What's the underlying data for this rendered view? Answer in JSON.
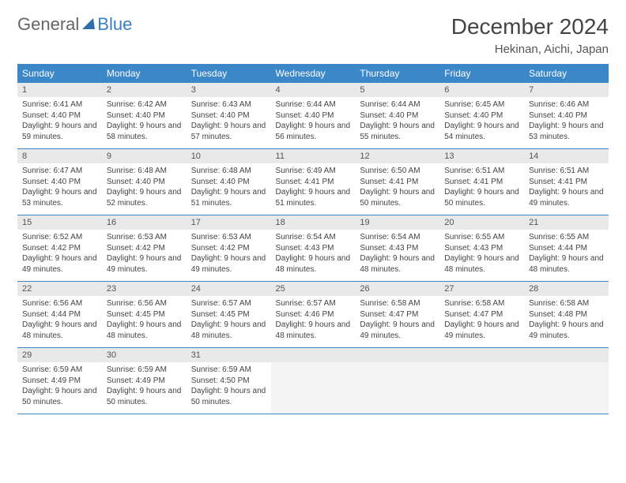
{
  "brand": {
    "part1": "General",
    "part2": "Blue"
  },
  "title": "December 2024",
  "location": "Hekinan, Aichi, Japan",
  "colors": {
    "header_bg": "#3b87c8",
    "header_text": "#ffffff",
    "daynum_bg": "#e9e9e9",
    "border": "#3b87c8",
    "brand_blue": "#3b7ec2"
  },
  "typography": {
    "title_fontsize": 28,
    "location_fontsize": 15,
    "header_fontsize": 12,
    "cell_fontsize": 10
  },
  "day_headers": [
    "Sunday",
    "Monday",
    "Tuesday",
    "Wednesday",
    "Thursday",
    "Friday",
    "Saturday"
  ],
  "weeks": [
    [
      {
        "n": "1",
        "sr": "Sunrise: 6:41 AM",
        "ss": "Sunset: 4:40 PM",
        "dl": "Daylight: 9 hours and 59 minutes."
      },
      {
        "n": "2",
        "sr": "Sunrise: 6:42 AM",
        "ss": "Sunset: 4:40 PM",
        "dl": "Daylight: 9 hours and 58 minutes."
      },
      {
        "n": "3",
        "sr": "Sunrise: 6:43 AM",
        "ss": "Sunset: 4:40 PM",
        "dl": "Daylight: 9 hours and 57 minutes."
      },
      {
        "n": "4",
        "sr": "Sunrise: 6:44 AM",
        "ss": "Sunset: 4:40 PM",
        "dl": "Daylight: 9 hours and 56 minutes."
      },
      {
        "n": "5",
        "sr": "Sunrise: 6:44 AM",
        "ss": "Sunset: 4:40 PM",
        "dl": "Daylight: 9 hours and 55 minutes."
      },
      {
        "n": "6",
        "sr": "Sunrise: 6:45 AM",
        "ss": "Sunset: 4:40 PM",
        "dl": "Daylight: 9 hours and 54 minutes."
      },
      {
        "n": "7",
        "sr": "Sunrise: 6:46 AM",
        "ss": "Sunset: 4:40 PM",
        "dl": "Daylight: 9 hours and 53 minutes."
      }
    ],
    [
      {
        "n": "8",
        "sr": "Sunrise: 6:47 AM",
        "ss": "Sunset: 4:40 PM",
        "dl": "Daylight: 9 hours and 53 minutes."
      },
      {
        "n": "9",
        "sr": "Sunrise: 6:48 AM",
        "ss": "Sunset: 4:40 PM",
        "dl": "Daylight: 9 hours and 52 minutes."
      },
      {
        "n": "10",
        "sr": "Sunrise: 6:48 AM",
        "ss": "Sunset: 4:40 PM",
        "dl": "Daylight: 9 hours and 51 minutes."
      },
      {
        "n": "11",
        "sr": "Sunrise: 6:49 AM",
        "ss": "Sunset: 4:41 PM",
        "dl": "Daylight: 9 hours and 51 minutes."
      },
      {
        "n": "12",
        "sr": "Sunrise: 6:50 AM",
        "ss": "Sunset: 4:41 PM",
        "dl": "Daylight: 9 hours and 50 minutes."
      },
      {
        "n": "13",
        "sr": "Sunrise: 6:51 AM",
        "ss": "Sunset: 4:41 PM",
        "dl": "Daylight: 9 hours and 50 minutes."
      },
      {
        "n": "14",
        "sr": "Sunrise: 6:51 AM",
        "ss": "Sunset: 4:41 PM",
        "dl": "Daylight: 9 hours and 49 minutes."
      }
    ],
    [
      {
        "n": "15",
        "sr": "Sunrise: 6:52 AM",
        "ss": "Sunset: 4:42 PM",
        "dl": "Daylight: 9 hours and 49 minutes."
      },
      {
        "n": "16",
        "sr": "Sunrise: 6:53 AM",
        "ss": "Sunset: 4:42 PM",
        "dl": "Daylight: 9 hours and 49 minutes."
      },
      {
        "n": "17",
        "sr": "Sunrise: 6:53 AM",
        "ss": "Sunset: 4:42 PM",
        "dl": "Daylight: 9 hours and 49 minutes."
      },
      {
        "n": "18",
        "sr": "Sunrise: 6:54 AM",
        "ss": "Sunset: 4:43 PM",
        "dl": "Daylight: 9 hours and 48 minutes."
      },
      {
        "n": "19",
        "sr": "Sunrise: 6:54 AM",
        "ss": "Sunset: 4:43 PM",
        "dl": "Daylight: 9 hours and 48 minutes."
      },
      {
        "n": "20",
        "sr": "Sunrise: 6:55 AM",
        "ss": "Sunset: 4:43 PM",
        "dl": "Daylight: 9 hours and 48 minutes."
      },
      {
        "n": "21",
        "sr": "Sunrise: 6:55 AM",
        "ss": "Sunset: 4:44 PM",
        "dl": "Daylight: 9 hours and 48 minutes."
      }
    ],
    [
      {
        "n": "22",
        "sr": "Sunrise: 6:56 AM",
        "ss": "Sunset: 4:44 PM",
        "dl": "Daylight: 9 hours and 48 minutes."
      },
      {
        "n": "23",
        "sr": "Sunrise: 6:56 AM",
        "ss": "Sunset: 4:45 PM",
        "dl": "Daylight: 9 hours and 48 minutes."
      },
      {
        "n": "24",
        "sr": "Sunrise: 6:57 AM",
        "ss": "Sunset: 4:45 PM",
        "dl": "Daylight: 9 hours and 48 minutes."
      },
      {
        "n": "25",
        "sr": "Sunrise: 6:57 AM",
        "ss": "Sunset: 4:46 PM",
        "dl": "Daylight: 9 hours and 48 minutes."
      },
      {
        "n": "26",
        "sr": "Sunrise: 6:58 AM",
        "ss": "Sunset: 4:47 PM",
        "dl": "Daylight: 9 hours and 49 minutes."
      },
      {
        "n": "27",
        "sr": "Sunrise: 6:58 AM",
        "ss": "Sunset: 4:47 PM",
        "dl": "Daylight: 9 hours and 49 minutes."
      },
      {
        "n": "28",
        "sr": "Sunrise: 6:58 AM",
        "ss": "Sunset: 4:48 PM",
        "dl": "Daylight: 9 hours and 49 minutes."
      }
    ],
    [
      {
        "n": "29",
        "sr": "Sunrise: 6:59 AM",
        "ss": "Sunset: 4:49 PM",
        "dl": "Daylight: 9 hours and 50 minutes."
      },
      {
        "n": "30",
        "sr": "Sunrise: 6:59 AM",
        "ss": "Sunset: 4:49 PM",
        "dl": "Daylight: 9 hours and 50 minutes."
      },
      {
        "n": "31",
        "sr": "Sunrise: 6:59 AM",
        "ss": "Sunset: 4:50 PM",
        "dl": "Daylight: 9 hours and 50 minutes."
      },
      null,
      null,
      null,
      null
    ]
  ]
}
